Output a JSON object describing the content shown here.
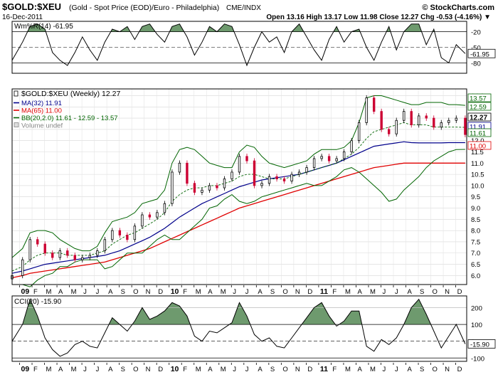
{
  "header": {
    "symbol": "$GOLD:$XEU",
    "description": "(Gold - Spot Price (EOD)/Euro - Philadelphia)",
    "exchange": "CME/INDX",
    "brand": "© StockCharts.com",
    "date": "16-Dec-2011",
    "quote": "Open 13.16  High 13.17  Low 11.98  Close 12.27  Chg -0.53 (-4.16%) ▼"
  },
  "colors": {
    "ma32": "#00008b",
    "ma65": "#e00000",
    "bb": "#006400",
    "up_candle": "#000000",
    "down_candle": "#cc0033",
    "osc_fill": "#6e9a6e"
  },
  "chart_data": [
    {
      "type": "line",
      "panel": "williams-r",
      "label": "Wm%R(14) -61.95",
      "ylim": [
        -100,
        0
      ],
      "yticks": [
        "-20",
        "-50",
        "-80"
      ],
      "current_label": "-61.95",
      "x": [
        2008.93,
        2009.0,
        2009.05,
        2009.1,
        2009.15,
        2009.2,
        2009.25,
        2009.3,
        2009.35,
        2009.4,
        2009.45,
        2009.5,
        2009.55,
        2009.6,
        2009.65,
        2009.7,
        2009.75,
        2009.8,
        2009.85,
        2009.9,
        2009.95,
        2010.0,
        2010.05,
        2010.1,
        2010.15,
        2010.2,
        2010.25,
        2010.3,
        2010.35,
        2010.4,
        2010.45,
        2010.5,
        2010.55,
        2010.6,
        2010.65,
        2010.7,
        2010.75,
        2010.8,
        2010.85,
        2010.9,
        2010.95,
        2011.0,
        2011.05,
        2011.1,
        2011.15,
        2011.2,
        2011.25,
        2011.3,
        2011.35,
        2011.4,
        2011.45,
        2011.5,
        2011.55,
        2011.6,
        2011.65,
        2011.7,
        2011.75,
        2011.8,
        2011.85,
        2011.9,
        2011.96
      ],
      "values": [
        -75,
        -40,
        -10,
        -5,
        -15,
        -60,
        -75,
        -85,
        -60,
        -30,
        -55,
        -75,
        -40,
        -15,
        -20,
        -10,
        -35,
        -10,
        -5,
        -25,
        -40,
        -10,
        -5,
        -30,
        -65,
        -40,
        -10,
        -20,
        -5,
        -10,
        -45,
        -85,
        -50,
        -20,
        -40,
        -30,
        -60,
        -20,
        -5,
        -30,
        -55,
        -75,
        -35,
        -10,
        -40,
        -20,
        -15,
        -50,
        -75,
        -40,
        -10,
        -55,
        -20,
        -5,
        -5,
        -45,
        -15,
        -70,
        -80,
        -45,
        -62
      ]
    },
    {
      "type": "candlestick",
      "panel": "price",
      "label": "$GOLD:$XEU (Weekly) 12.27",
      "ylim": [
        5.6,
        14.3
      ],
      "yticks": [
        "6.0",
        "6.5",
        "7.0",
        "7.5",
        "8.0",
        "8.5",
        "9.0",
        "9.5",
        "10.0",
        "10.5",
        "11.0",
        "11.5",
        "12.0",
        "12.5",
        "13.0",
        "13.5",
        "14.0"
      ],
      "x_labels": [
        "09",
        "F",
        "M",
        "A",
        "M",
        "J",
        "J",
        "A",
        "S",
        "O",
        "N",
        "D",
        "10",
        "F",
        "M",
        "A",
        "M",
        "J",
        "J",
        "A",
        "S",
        "O",
        "N",
        "D",
        "11",
        "F",
        "M",
        "A",
        "M",
        "J",
        "J",
        "A",
        "S",
        "O",
        "N",
        "D"
      ],
      "price": {
        "x": [
          2008.93,
          2009.0,
          2009.05,
          2009.1,
          2009.15,
          2009.2,
          2009.25,
          2009.3,
          2009.35,
          2009.4,
          2009.45,
          2009.5,
          2009.55,
          2009.6,
          2009.65,
          2009.7,
          2009.75,
          2009.8,
          2009.85,
          2009.9,
          2009.95,
          2010.0,
          2010.05,
          2010.1,
          2010.15,
          2010.2,
          2010.25,
          2010.3,
          2010.35,
          2010.4,
          2010.45,
          2010.5,
          2010.55,
          2010.6,
          2010.65,
          2010.7,
          2010.75,
          2010.8,
          2010.85,
          2010.9,
          2010.95,
          2011.0,
          2011.05,
          2011.1,
          2011.15,
          2011.2,
          2011.25,
          2011.3,
          2011.35,
          2011.4,
          2011.45,
          2011.5,
          2011.55,
          2011.6,
          2011.65,
          2011.7,
          2011.75,
          2011.8,
          2011.85,
          2011.9,
          2011.96
        ],
        "values": [
          6.0,
          6.7,
          7.6,
          7.4,
          7.0,
          6.8,
          7.1,
          6.9,
          6.7,
          6.8,
          6.9,
          7.1,
          7.6,
          8.0,
          7.8,
          7.6,
          8.2,
          8.7,
          8.6,
          8.8,
          9.2,
          10.6,
          11.0,
          10.1,
          9.7,
          9.8,
          10.0,
          9.9,
          10.3,
          10.6,
          11.3,
          11.1,
          10.0,
          10.1,
          10.4,
          10.3,
          10.2,
          10.5,
          10.6,
          10.8,
          11.2,
          11.3,
          11.1,
          11.2,
          11.5,
          12.0,
          12.8,
          13.9,
          13.3,
          12.5,
          12.3,
          12.9,
          13.3,
          12.7,
          13.1,
          13.0,
          12.6,
          12.8,
          12.9,
          13.0,
          12.27
        ]
      },
      "series": [
        {
          "name": "MA(32) 11.91",
          "role": "ma32",
          "values": [
            6.1,
            6.2,
            6.3,
            6.4,
            6.5,
            6.55,
            6.6,
            6.65,
            6.7,
            6.75,
            6.8,
            6.85,
            6.9,
            7.0,
            7.1,
            7.25,
            7.4,
            7.55,
            7.7,
            7.9,
            8.1,
            8.35,
            8.6,
            8.8,
            9.0,
            9.2,
            9.35,
            9.5,
            9.65,
            9.8,
            9.95,
            10.05,
            10.15,
            10.25,
            10.3,
            10.35,
            10.4,
            10.45,
            10.5,
            10.6,
            10.7,
            10.8,
            10.9,
            11.0,
            11.15,
            11.3,
            11.45,
            11.6,
            11.75,
            11.8,
            11.85,
            11.9,
            11.95,
            11.91,
            11.9,
            11.9,
            11.9,
            11.9,
            11.91,
            11.91,
            11.91
          ]
        },
        {
          "name": "MA(65) 11.00",
          "role": "ma65",
          "values": [
            5.9,
            6.0,
            6.1,
            6.15,
            6.2,
            6.25,
            6.3,
            6.35,
            6.4,
            6.45,
            6.5,
            6.55,
            6.6,
            6.7,
            6.8,
            6.9,
            7.0,
            7.1,
            7.2,
            7.35,
            7.5,
            7.65,
            7.8,
            7.95,
            8.1,
            8.25,
            8.4,
            8.55,
            8.7,
            8.85,
            9.0,
            9.1,
            9.2,
            9.3,
            9.4,
            9.5,
            9.6,
            9.7,
            9.8,
            9.9,
            10.0,
            10.1,
            10.2,
            10.3,
            10.4,
            10.5,
            10.6,
            10.7,
            10.8,
            10.85,
            10.9,
            10.95,
            11.0,
            11.0,
            11.0,
            11.0,
            11.0,
            11.0,
            11.0,
            11.0,
            11.0
          ]
        },
        {
          "name": "BB(20,2.0) 11.61 - 12.59 - 13.57",
          "role": "bb_upper",
          "values": [
            6.8,
            7.2,
            7.9,
            8.0,
            8.0,
            7.9,
            7.6,
            7.4,
            7.2,
            7.1,
            7.1,
            7.3,
            7.9,
            8.4,
            8.5,
            8.6,
            8.8,
            9.2,
            9.3,
            9.4,
            9.8,
            11.0,
            11.6,
            11.7,
            11.6,
            11.3,
            11.0,
            10.9,
            10.8,
            10.8,
            11.5,
            11.8,
            11.7,
            11.3,
            11.0,
            10.9,
            10.8,
            10.9,
            11.0,
            11.1,
            11.4,
            11.6,
            11.6,
            11.6,
            11.7,
            12.0,
            12.8,
            13.9,
            14.0,
            14.0,
            13.9,
            13.8,
            13.7,
            13.6,
            13.6,
            13.7,
            13.7,
            13.7,
            13.6,
            13.6,
            13.57
          ]
        },
        {
          "name": "BB mid",
          "role": "bb_mid",
          "values": [
            6.2,
            6.4,
            6.7,
            6.9,
            7.0,
            7.0,
            7.0,
            6.9,
            6.9,
            6.9,
            6.9,
            7.0,
            7.1,
            7.4,
            7.6,
            7.8,
            7.9,
            8.1,
            8.3,
            8.5,
            8.8,
            9.3,
            9.6,
            9.8,
            9.9,
            9.9,
            10.0,
            10.0,
            10.1,
            10.2,
            10.4,
            10.5,
            10.5,
            10.4,
            10.3,
            10.3,
            10.3,
            10.4,
            10.5,
            10.6,
            10.7,
            10.8,
            10.9,
            11.0,
            11.2,
            11.4,
            11.7,
            12.1,
            12.4,
            12.5,
            12.6,
            12.7,
            12.8,
            12.7,
            12.7,
            12.7,
            12.6,
            12.6,
            12.6,
            12.6,
            12.59
          ]
        },
        {
          "name": "BB lower",
          "role": "bb_lower",
          "values": [
            5.6,
            5.6,
            5.5,
            5.8,
            6.0,
            6.1,
            6.4,
            6.4,
            6.6,
            6.7,
            6.7,
            6.7,
            6.3,
            6.4,
            6.7,
            7.0,
            7.0,
            7.0,
            7.3,
            7.6,
            7.8,
            7.6,
            7.6,
            7.9,
            8.2,
            8.5,
            9.0,
            9.1,
            9.4,
            9.6,
            9.3,
            9.2,
            9.3,
            9.5,
            9.6,
            9.7,
            9.8,
            9.9,
            10.0,
            10.1,
            10.0,
            10.0,
            10.2,
            10.4,
            10.7,
            10.8,
            10.6,
            10.3,
            10.0,
            9.7,
            9.3,
            9.4,
            9.8,
            10.1,
            10.4,
            10.8,
            11.1,
            11.3,
            11.5,
            11.6,
            11.61
          ]
        }
      ],
      "current_labels": [
        {
          "text": "13.57",
          "value": 13.57,
          "color": "#006400",
          "bold": false
        },
        {
          "text": "12.59",
          "value": 12.59,
          "color": "#006400",
          "bold": false
        },
        {
          "text": "12.27",
          "value": 12.27,
          "color": "#000000",
          "bold": true
        },
        {
          "text": "11.91",
          "value": 11.91,
          "color": "#00008b",
          "bold": false
        },
        {
          "text": "11.61",
          "value": 11.61,
          "color": "#006400",
          "bold": false
        },
        {
          "text": "11.00",
          "value": 11.0,
          "color": "#e00000",
          "bold": false
        }
      ],
      "legend": [
        {
          "text": "$GOLD:$XEU (Weekly) 12.27",
          "color": "#000000",
          "marker": "candle"
        },
        {
          "text": "MA(32) 11.91",
          "color": "#00008b",
          "marker": "line"
        },
        {
          "text": "MA(65) 11.00",
          "color": "#e00000",
          "marker": "line"
        },
        {
          "text": "BB(20,2.0) 11.61 - 12.59 - 13.57",
          "color": "#006400",
          "marker": "line"
        },
        {
          "text": "Volume undef",
          "color": "#888888",
          "marker": "box"
        }
      ]
    },
    {
      "type": "line",
      "panel": "cci",
      "label": "CCI(20) -15.90",
      "ylim": [
        -120,
        270
      ],
      "yticks": [
        "200",
        "100",
        "0",
        "-100"
      ],
      "current_label": "-15.90",
      "x": [
        2008.93,
        2009.0,
        2009.05,
        2009.1,
        2009.15,
        2009.2,
        2009.25,
        2009.3,
        2009.35,
        2009.4,
        2009.45,
        2009.5,
        2009.55,
        2009.6,
        2009.65,
        2009.7,
        2009.75,
        2009.8,
        2009.85,
        2009.9,
        2009.95,
        2010.0,
        2010.05,
        2010.1,
        2010.15,
        2010.2,
        2010.25,
        2010.3,
        2010.35,
        2010.4,
        2010.45,
        2010.5,
        2010.55,
        2010.6,
        2010.65,
        2010.7,
        2010.75,
        2010.8,
        2010.85,
        2010.9,
        2010.95,
        2011.0,
        2011.05,
        2011.1,
        2011.15,
        2011.2,
        2011.25,
        2011.3,
        2011.35,
        2011.4,
        2011.45,
        2011.5,
        2011.55,
        2011.6,
        2011.65,
        2011.7,
        2011.75,
        2011.8,
        2011.85,
        2011.9,
        2011.96
      ],
      "values": [
        0,
        100,
        250,
        150,
        20,
        -50,
        -90,
        -70,
        -20,
        0,
        -30,
        -40,
        50,
        140,
        100,
        60,
        120,
        200,
        130,
        150,
        180,
        230,
        210,
        150,
        30,
        0,
        60,
        50,
        80,
        110,
        230,
        150,
        40,
        0,
        20,
        -30,
        -40,
        20,
        80,
        140,
        200,
        230,
        150,
        90,
        120,
        180,
        180,
        -30,
        -60,
        10,
        -20,
        20,
        100,
        200,
        250,
        160,
        60,
        -40,
        30,
        100,
        -16
      ]
    }
  ]
}
